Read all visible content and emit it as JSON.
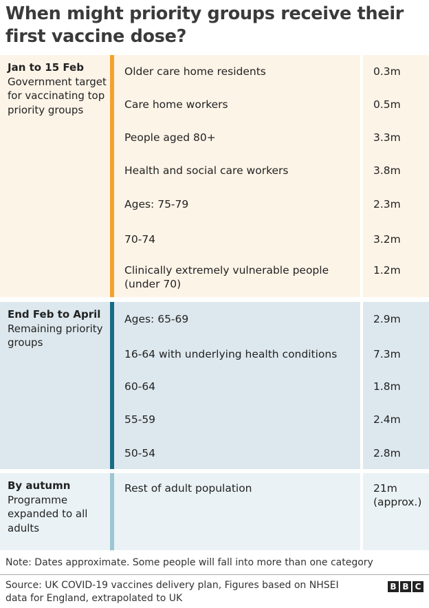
{
  "chart_data": {
    "type": "table",
    "title": "When might priority groups receive their first vaccine dose?",
    "colors": {
      "phase1_bg": "#fdf4e8",
      "phase1_bar": "#f5a12b",
      "phase2_bg": "#dde8ee",
      "phase2_bar": "#176c86",
      "phase3_bg": "#eaf2f5",
      "phase3_bar": "#9cc6d4"
    },
    "phases": [
      {
        "period": "Jan to 15 Feb",
        "description": "Government target for vaccinating top priority groups",
        "groups": [
          {
            "group": "Older care home residents",
            "count": "0.3m"
          },
          {
            "group": "Care home workers",
            "count": "0.5m"
          },
          {
            "group": "People aged 80+",
            "count": "3.3m"
          },
          {
            "group": "Health and social care workers",
            "count": "3.8m"
          },
          {
            "group": "Ages: 75-79",
            "count": "2.3m"
          },
          {
            "group": "70-74",
            "count": "3.2m"
          },
          {
            "group": "Clinically extremely vulnerable people (under 70)",
            "count": "1.2m"
          }
        ]
      },
      {
        "period": "End Feb to April",
        "description": "Remaining priority groups",
        "groups": [
          {
            "group": "Ages: 65-69",
            "count": "2.9m"
          },
          {
            "group": "16-64 with underlying health conditions",
            "count": "7.3m"
          },
          {
            "group": "60-64",
            "count": "1.8m"
          },
          {
            "group": "55-59",
            "count": "2.4m"
          },
          {
            "group": "50-54",
            "count": "2.8m"
          }
        ]
      },
      {
        "period": "By autumn",
        "description": "Programme expanded to all adults",
        "groups": [
          {
            "group": "Rest of adult population",
            "count": "21m (approx.)"
          }
        ]
      }
    ],
    "note": "Note: Dates approximate. Some people will fall into more than one category",
    "source": "Source: UK COVID-19 vaccines delivery plan, Figures based on NHSEI data for England, extrapolated to UK",
    "logo": [
      "B",
      "B",
      "C"
    ]
  }
}
